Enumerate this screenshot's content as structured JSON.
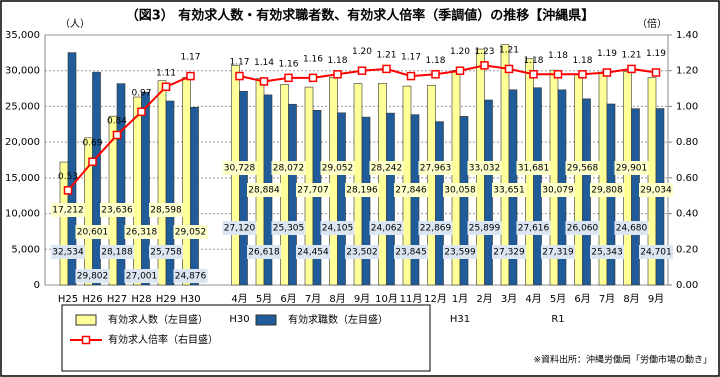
{
  "chart_data": {
    "type": "bar-line",
    "title": "（図3） 有効求人数・有効求職者数、有効求人倍率（季調値）の推移【沖縄県】",
    "y_label": "（人）",
    "y2_label": "（倍）",
    "note": "※資料出所：沖縄労働局「労働市場の動き」",
    "categories": [
      "H25",
      "H26",
      "H27",
      "H28",
      "H29",
      "H30",
      "4月",
      "5月",
      "6月",
      "7月",
      "8月",
      "9月",
      "10月",
      "11月",
      "12月",
      "1月",
      "2月",
      "3月",
      "4月",
      "5月",
      "6月",
      "7月",
      "8月",
      "9月"
    ],
    "categories2": [
      null,
      null,
      null,
      null,
      null,
      null,
      "H30",
      null,
      null,
      null,
      null,
      null,
      null,
      null,
      null,
      "H31",
      null,
      null,
      null,
      "R1",
      null,
      null,
      null,
      null
    ],
    "ylim": [
      0,
      35000
    ],
    "yticks": [
      0,
      {
        "value": 5000,
        "label": "5,000"
      },
      {
        "value": 10000,
        "label": "10,000"
      },
      {
        "value": 15000,
        "label": "15,000"
      },
      {
        "value": 20000,
        "label": "20,000"
      },
      {
        "value": 25000,
        "label": "25,000"
      },
      {
        "value": 30000,
        "label": "30,000"
      },
      {
        "value": 35000,
        "label": "35,000"
      }
    ],
    "y2lim": [
      0,
      1.4
    ],
    "y2ticks": [
      {
        "value": 0,
        "label": "0.00"
      },
      {
        "value": 0.2,
        "label": "0.20"
      },
      {
        "value": 0.4,
        "label": "0.40"
      },
      {
        "value": 0.6,
        "label": "0.60"
      },
      {
        "value": 0.8,
        "label": "0.80"
      },
      {
        "value": 1,
        "label": "1.00"
      },
      {
        "value": 1.2,
        "label": "1.20"
      },
      {
        "value": 1.4,
        "label": "1.40"
      }
    ],
    "grid": true,
    "series": [
      {
        "name": "有効求人数（左目盛）",
        "kind": "bar",
        "color": "#ffff99",
        "values": [
          17212,
          20601,
          23636,
          26318,
          28598,
          29052,
          30728,
          28884,
          28072,
          27707,
          29052,
          28196,
          28242,
          27846,
          27963,
          30058,
          33032,
          33651,
          31681,
          30079,
          29568,
          29808,
          29901,
          29034
        ],
        "value_labels": [
          "17,212",
          "20,601",
          "23,636",
          "26,318",
          "28,598",
          "29,052",
          "30,728",
          "28,884",
          "28,072",
          "27,707",
          "29,052",
          "28,196",
          "28,242",
          "27,846",
          "27,963",
          "30,058",
          "33,032",
          "33,651",
          "31,681",
          "30,079",
          "29,568",
          "29,808",
          "29,901",
          "29,034"
        ]
      },
      {
        "name": "有効求職数（左目盛）",
        "kind": "bar",
        "color": "#1f5c99",
        "values": [
          32534,
          29802,
          28188,
          27001,
          25758,
          24876,
          27120,
          26618,
          25305,
          24454,
          24105,
          23502,
          24062,
          23845,
          22869,
          23599,
          25899,
          27329,
          27616,
          27319,
          26060,
          25343,
          24680,
          24701
        ],
        "value_labels": [
          "32,534",
          "29,802",
          "28,188",
          "27,001",
          "25,758",
          "24,876",
          "27,120",
          "26,618",
          "25,305",
          "24,454",
          "24,105",
          "23,502",
          "24,062",
          "23,845",
          "22,869",
          "23,599",
          "25,899",
          "27,329",
          "27,616",
          "27,319",
          "26,060",
          "25,343",
          "24,680",
          "24,701"
        ]
      },
      {
        "name": "有効求人倍率（右目盛）",
        "kind": "line",
        "axis": "y2",
        "color": "#ff0000",
        "values": [
          0.53,
          0.69,
          0.84,
          0.97,
          1.11,
          1.17,
          1.17,
          1.14,
          1.16,
          1.16,
          1.18,
          1.2,
          1.21,
          1.17,
          1.18,
          1.2,
          1.23,
          1.21,
          1.18,
          1.18,
          1.18,
          1.19,
          1.21,
          1.19
        ],
        "value_labels": [
          "0.53",
          "0.69",
          "0.84",
          "0.97",
          "1.11",
          "1.17",
          "1.17",
          "1.14",
          "1.16",
          "1.16",
          "1.18",
          "1.20",
          "1.21",
          "1.17",
          "1.18",
          "1.20",
          "1.23",
          "1.21",
          "1.18",
          "1.18",
          "1.18",
          "1.19",
          "1.21",
          "1.19"
        ]
      }
    ]
  }
}
